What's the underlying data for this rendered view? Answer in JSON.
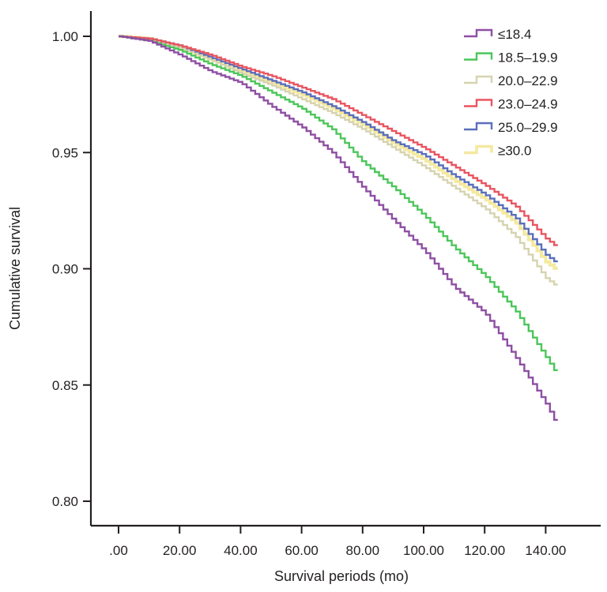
{
  "chart_data": {
    "type": "line",
    "title": "",
    "xlabel": "Survival periods (mo)",
    "ylabel": "Cumulative survival",
    "xlim": [
      -9,
      160
    ],
    "ylim": [
      0.785,
      1.01
    ],
    "x_ticks": [
      0,
      20,
      40,
      60,
      80,
      100,
      120,
      140
    ],
    "x_tick_labels": [
      ".00",
      "20.00",
      "40.00",
      "60.00",
      "80.00",
      "100.00",
      "120.00",
      "140.00"
    ],
    "y_ticks": [
      0.8,
      0.85,
      0.9,
      0.95,
      1.0
    ],
    "y_tick_labels": [
      "0.80",
      "0.85",
      "0.90",
      "0.95",
      "1.00"
    ],
    "grid": false,
    "legend_position": "top-right",
    "step": true,
    "x": [
      0,
      10,
      20,
      30,
      40,
      50,
      60,
      70,
      80,
      90,
      100,
      110,
      120,
      130,
      140,
      144
    ],
    "series": [
      {
        "name": "≤18.4",
        "color": "#8e4fa3",
        "values": [
          1.0,
          0.998,
          0.992,
          0.985,
          0.98,
          0.97,
          0.961,
          0.95,
          0.935,
          0.921,
          0.908,
          0.892,
          0.881,
          0.862,
          0.842,
          0.832
        ]
      },
      {
        "name": "18.5–19.9",
        "color": "#4cc65a",
        "values": [
          1.0,
          0.998,
          0.994,
          0.988,
          0.983,
          0.976,
          0.969,
          0.96,
          0.946,
          0.935,
          0.923,
          0.909,
          0.897,
          0.882,
          0.862,
          0.854
        ]
      },
      {
        "name": "20.0–22.9",
        "color": "#d6d3b0",
        "values": [
          1.0,
          0.998,
          0.995,
          0.99,
          0.984,
          0.979,
          0.973,
          0.967,
          0.96,
          0.952,
          0.944,
          0.935,
          0.926,
          0.914,
          0.896,
          0.892
        ]
      },
      {
        "name": "23.0–24.9",
        "color": "#e85560",
        "values": [
          1.0,
          0.999,
          0.996,
          0.992,
          0.987,
          0.983,
          0.978,
          0.973,
          0.966,
          0.959,
          0.952,
          0.944,
          0.936,
          0.927,
          0.913,
          0.909
        ]
      },
      {
        "name": "25.0–29.9",
        "color": "#5a6fbd",
        "values": [
          1.0,
          0.999,
          0.996,
          0.991,
          0.986,
          0.981,
          0.976,
          0.97,
          0.963,
          0.955,
          0.949,
          0.94,
          0.932,
          0.922,
          0.906,
          0.902
        ]
      },
      {
        "name": "≥30.0",
        "color": "#f4e9a0",
        "values": [
          1.0,
          0.999,
          0.995,
          0.99,
          0.985,
          0.98,
          0.975,
          0.969,
          0.962,
          0.954,
          0.947,
          0.938,
          0.93,
          0.92,
          0.903,
          0.899
        ]
      }
    ],
    "draw_order": [
      5,
      2,
      4,
      3,
      1,
      0
    ]
  }
}
